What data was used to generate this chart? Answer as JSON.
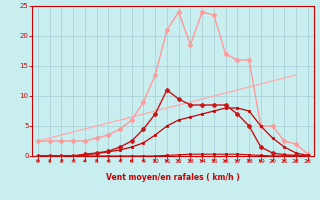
{
  "background_color": "#c8eef0",
  "grid_color": "#a8ccd4",
  "xlabel": "Vent moyen/en rafales ( km/h )",
  "xlabel_color": "#cc0000",
  "tick_color": "#cc0000",
  "axis_color": "#cc0000",
  "xlim": [
    -0.5,
    23.5
  ],
  "ylim": [
    0,
    25
  ],
  "yticks": [
    0,
    5,
    10,
    15,
    20,
    25
  ],
  "xticks": [
    0,
    1,
    2,
    3,
    4,
    5,
    6,
    7,
    8,
    9,
    10,
    11,
    12,
    13,
    14,
    15,
    16,
    17,
    18,
    19,
    20,
    21,
    22,
    23
  ],
  "lines": [
    {
      "x": [
        0,
        1,
        2,
        3,
        4,
        5,
        6,
        7,
        8,
        9,
        10,
        11,
        12,
        13,
        14,
        15,
        16,
        17,
        18,
        19,
        20,
        21,
        22,
        23
      ],
      "y": [
        0,
        0,
        0,
        0,
        0,
        0,
        0,
        0,
        0,
        0,
        0,
        0.1,
        0.2,
        0.3,
        0.3,
        0.3,
        0.3,
        0.3,
        0.2,
        0.1,
        0,
        0,
        0,
        0
      ],
      "color": "#cc0000",
      "lw": 0.8,
      "marker": "s",
      "ms": 2.0,
      "zorder": 5
    },
    {
      "x": [
        0,
        1,
        2,
        3,
        4,
        5,
        6,
        7,
        8,
        9,
        10,
        11,
        12,
        13,
        14,
        15,
        16,
        17,
        18,
        19,
        20,
        21,
        22,
        23
      ],
      "y": [
        0,
        0,
        0,
        0,
        0.2,
        0.4,
        0.7,
        1.0,
        1.5,
        2.2,
        3.5,
        5.0,
        6.0,
        6.5,
        7.0,
        7.5,
        8.0,
        8.0,
        7.5,
        5.0,
        3.0,
        1.5,
        0.5,
        0.1
      ],
      "color": "#cc0000",
      "lw": 0.9,
      "marker": "s",
      "ms": 2.0,
      "zorder": 5
    },
    {
      "x": [
        0,
        1,
        2,
        3,
        4,
        5,
        6,
        7,
        8,
        9,
        10,
        11,
        12,
        13,
        14,
        15,
        16,
        17,
        18,
        19,
        20,
        21,
        22,
        23
      ],
      "y": [
        0,
        0,
        0,
        0,
        0.3,
        0.5,
        0.8,
        1.5,
        2.5,
        4.5,
        7.0,
        11.0,
        9.5,
        8.5,
        8.5,
        8.5,
        8.5,
        7.0,
        5.0,
        1.5,
        0.5,
        0.2,
        0.1,
        0
      ],
      "color": "#cc1111",
      "lw": 1.0,
      "marker": "P",
      "ms": 3.0,
      "zorder": 6
    },
    {
      "x": [
        0,
        22
      ],
      "y": [
        2.5,
        13.5
      ],
      "color": "#ffaaaa",
      "lw": 0.9,
      "marker": null,
      "ms": 0,
      "zorder": 2
    },
    {
      "x": [
        0,
        1,
        2,
        3,
        4,
        5,
        6,
        7,
        8,
        9,
        10,
        11,
        12,
        13,
        14,
        15,
        16,
        17,
        18,
        19,
        20,
        21,
        22,
        23
      ],
      "y": [
        2.5,
        2.5,
        2.5,
        2.5,
        2.5,
        3.0,
        3.5,
        4.5,
        6.0,
        9.0,
        13.5,
        21.0,
        24.0,
        18.5,
        24.0,
        23.5,
        17.0,
        16.0,
        16.0,
        5.0,
        5.0,
        2.5,
        2.0,
        0.3
      ],
      "color": "#ff9999",
      "lw": 1.0,
      "marker": "D",
      "ms": 2.5,
      "zorder": 3
    }
  ],
  "wind_arrows": {
    "x": [
      0,
      1,
      2,
      3,
      4,
      5,
      6,
      7,
      8,
      9,
      10,
      11,
      12,
      13,
      14,
      15,
      16,
      17,
      18,
      19,
      20,
      21,
      22,
      23
    ],
    "angles_deg": [
      225,
      225,
      225,
      225,
      225,
      225,
      225,
      225,
      270,
      135,
      135,
      270,
      135,
      135,
      270,
      135,
      270,
      270,
      135,
      270,
      225,
      270,
      225,
      225
    ]
  }
}
